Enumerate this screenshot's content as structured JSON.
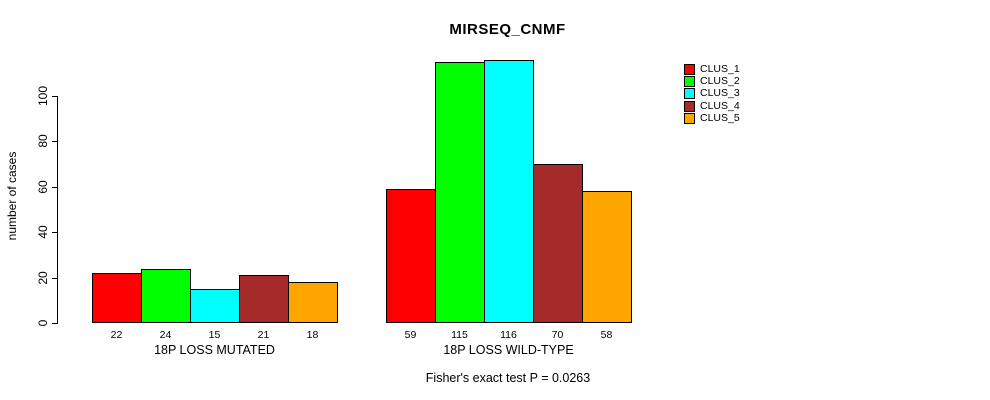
{
  "title": "MIRSEQ_CNMF",
  "chart_data": {
    "type": "bar",
    "title": "MIRSEQ_CNMF",
    "xlabel": "",
    "ylabel": "number of cases",
    "yticks": [
      0,
      20,
      40,
      60,
      80,
      100
    ],
    "ylim": [
      0,
      116
    ],
    "grid": false,
    "legend_position": "top-right",
    "categories": [
      "18P LOSS MUTATED",
      "18P LOSS WILD-TYPE"
    ],
    "series": [
      {
        "name": "CLUS_1",
        "color": "#FF0000",
        "values": [
          22,
          59
        ]
      },
      {
        "name": "CLUS_2",
        "color": "#00FF00",
        "values": [
          24,
          115
        ]
      },
      {
        "name": "CLUS_3",
        "color": "#00FFFF",
        "values": [
          15,
          116
        ]
      },
      {
        "name": "CLUS_4",
        "color": "#A52A2A",
        "values": [
          21,
          70
        ]
      },
      {
        "name": "CLUS_5",
        "color": "#FFA500",
        "values": [
          18,
          58
        ]
      }
    ],
    "bar_labels": [
      [
        22,
        24,
        15,
        21,
        18
      ],
      [
        59,
        115,
        116,
        70,
        58
      ]
    ],
    "annotation": "Fisher's exact test P = 0.0263"
  }
}
